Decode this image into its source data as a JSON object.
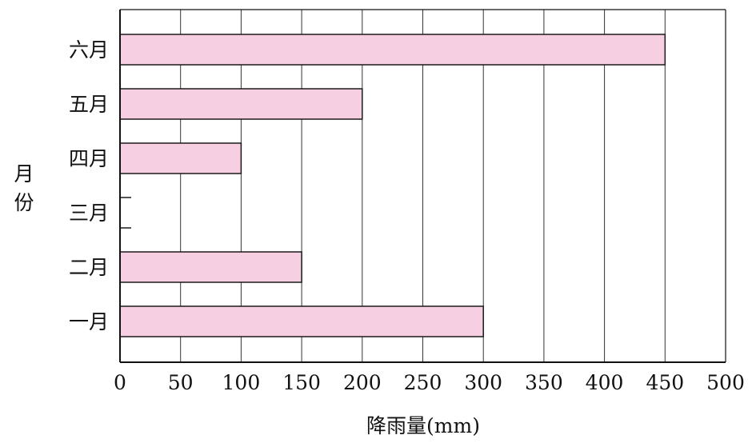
{
  "chart_data": {
    "type": "bar",
    "orientation": "horizontal",
    "categories": [
      "一月",
      "二月",
      "三月",
      "四月",
      "五月",
      "六月"
    ],
    "values": [
      300,
      150,
      0,
      100,
      200,
      450
    ],
    "xlabel": "降雨量(mm)",
    "ylabel": [
      "月",
      "份"
    ],
    "xlim": [
      0,
      500
    ],
    "xticks": [
      "0",
      "50",
      "100",
      "150",
      "200",
      "250",
      "300",
      "350",
      "400",
      "450",
      "500"
    ],
    "grid": "vertical",
    "colors": {
      "bar_fill": "#f7cfe3",
      "bar_stroke": "#1a1a1a",
      "grid": "#333333"
    }
  }
}
